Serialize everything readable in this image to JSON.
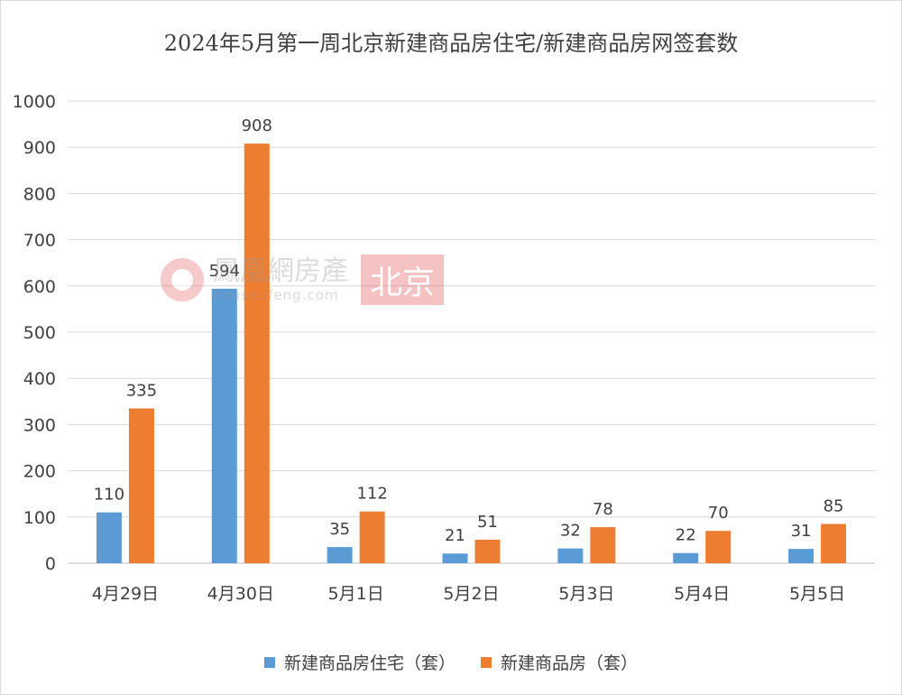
{
  "chart_data": {
    "type": "bar",
    "title": "2024年5月第一周北京新建商品房住宅/新建商品房网签套数",
    "categories": [
      "4月29日",
      "4月30日",
      "5月1日",
      "5月2日",
      "5月3日",
      "5月4日",
      "5月5日"
    ],
    "series": [
      {
        "name": "新建商品房住宅（套）",
        "color": "#5b9bd5",
        "values": [
          110,
          594,
          35,
          21,
          32,
          22,
          31
        ]
      },
      {
        "name": "新建商品房（套）",
        "color": "#ed7d31",
        "values": [
          335,
          908,
          112,
          51,
          78,
          70,
          85
        ]
      }
    ],
    "ylim": [
      0,
      1000
    ],
    "yticks": [
      0,
      100,
      200,
      300,
      400,
      500,
      600,
      700,
      800,
      900,
      1000
    ],
    "grid": true,
    "legend": "bottom"
  },
  "watermark": {
    "brand": "鳳凰網房產",
    "url": "house.ifeng.com",
    "city": "北京"
  }
}
